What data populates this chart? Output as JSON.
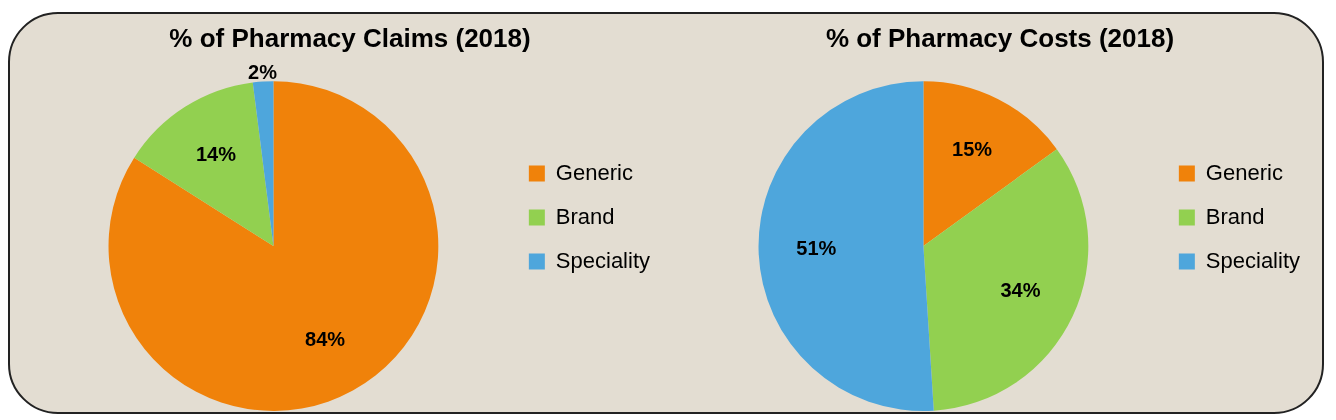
{
  "chart_data": [
    {
      "type": "pie",
      "title": "% of Pharmacy Claims (2018)",
      "categories": [
        "Generic",
        "Brand",
        "Speciality"
      ],
      "values": [
        84,
        14,
        2
      ],
      "colors": [
        "#f0820a",
        "#92d050",
        "#4ea6dc"
      ],
      "value_labels": [
        "84%",
        "14%",
        "2%"
      ],
      "legend": "right"
    },
    {
      "type": "pie",
      "title": "% of Pharmacy Costs (2018)",
      "categories": [
        "Generic",
        "Brand",
        "Speciality"
      ],
      "values": [
        15,
        34,
        51
      ],
      "colors": [
        "#f0820a",
        "#92d050",
        "#4ea6dc"
      ],
      "value_labels": [
        "15%",
        "34%",
        "51%"
      ],
      "legend": "right"
    }
  ]
}
